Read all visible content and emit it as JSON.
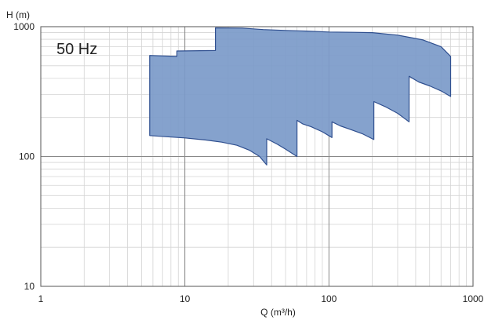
{
  "chart_data": {
    "type": "area",
    "xlabel": "Q (m³/h)",
    "ylabel": "H (m)",
    "x_scale": "log",
    "y_scale": "log",
    "xlim": [
      1,
      1000
    ],
    "ylim": [
      10,
      1000
    ],
    "x_ticks": [
      1,
      10,
      100,
      1000
    ],
    "x_tick_labels": [
      "1",
      "10",
      "100",
      "1000"
    ],
    "y_ticks": [
      10,
      100,
      1000
    ],
    "y_tick_labels": [
      "10",
      "100",
      "1000"
    ],
    "grid": true,
    "legend": "none",
    "annotation": "50 Hz",
    "series": [
      {
        "fill_color": "#7b9ac9",
        "stroke_color": "#2f4f8f",
        "upper": [
          [
            5.7,
            600
          ],
          [
            8.8,
            590
          ],
          [
            8.8,
            650
          ],
          [
            16.3,
            655
          ],
          [
            16.3,
            980
          ],
          [
            25,
            975
          ],
          [
            35,
            950
          ],
          [
            50,
            935
          ],
          [
            70,
            925
          ],
          [
            100,
            910
          ],
          [
            150,
            905
          ],
          [
            200,
            900
          ],
          [
            300,
            860
          ],
          [
            450,
            790
          ],
          [
            600,
            700
          ],
          [
            700,
            590
          ]
        ],
        "lower": [
          [
            700,
            290
          ],
          [
            600,
            320
          ],
          [
            500,
            350
          ],
          [
            420,
            375
          ],
          [
            360,
            415
          ],
          [
            360,
            185
          ],
          [
            300,
            215
          ],
          [
            250,
            240
          ],
          [
            205,
            265
          ],
          [
            205,
            135
          ],
          [
            170,
            150
          ],
          [
            140,
            162
          ],
          [
            120,
            172
          ],
          [
            105,
            185
          ],
          [
            105,
            140
          ],
          [
            90,
            155
          ],
          [
            75,
            170
          ],
          [
            66,
            178
          ],
          [
            60,
            190
          ],
          [
            60,
            100
          ],
          [
            50,
            114
          ],
          [
            44,
            124
          ],
          [
            39,
            133
          ],
          [
            37,
            137
          ],
          [
            37,
            86
          ],
          [
            33,
            100
          ],
          [
            28,
            112
          ],
          [
            23,
            122
          ],
          [
            18,
            129
          ],
          [
            14,
            134
          ],
          [
            10,
            139
          ],
          [
            7.5,
            142
          ],
          [
            5.7,
            145
          ]
        ]
      }
    ]
  }
}
